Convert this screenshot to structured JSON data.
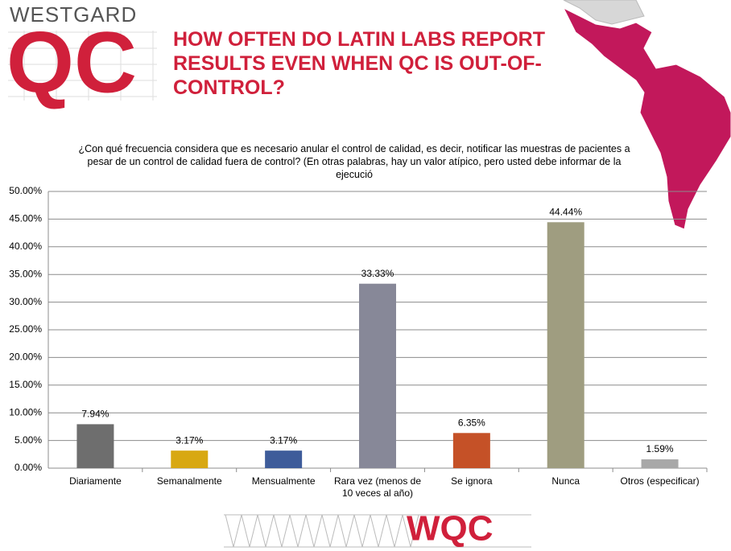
{
  "logo": {
    "brand": "WESTGARD",
    "mark": "QC"
  },
  "footer_logo": "WQC",
  "chart_data": {
    "type": "bar",
    "title": "HOW OFTEN DO LATIN LABS REPORT RESULTS EVEN WHEN QC IS OUT-OF-CONTROL?",
    "subtitle": "¿Con qué frecuencia considera que es necesario anular el control de calidad, es decir, notificar las muestras de pacientes a pesar de un control de calidad fuera de control? (En otras palabras, hay un valor atípico, pero usted debe informar de la ejecució",
    "categories": [
      "Diariamente",
      "Semanalmente",
      "Mensualmente",
      "Rara vez (menos de 10 veces al año)",
      "Se ignora",
      "Nunca",
      "Otros (especificar)"
    ],
    "values": [
      7.94,
      3.17,
      3.17,
      33.33,
      6.35,
      44.44,
      1.59
    ],
    "value_labels": [
      "7.94%",
      "3.17%",
      "3.17%",
      "33.33%",
      "6.35%",
      "44.44%",
      "1.59%"
    ],
    "colors": [
      "#6e6e6e",
      "#d8a812",
      "#3e5c9a",
      "#878898",
      "#c55127",
      "#9f9d80",
      "#a8a8a8"
    ],
    "ylim": [
      0,
      50
    ],
    "yticks": [
      {
        "value": 0,
        "label": "0.00%"
      },
      {
        "value": 5,
        "label": "5.00%"
      },
      {
        "value": 10,
        "label": "10.00%"
      },
      {
        "value": 15,
        "label": "15.00%"
      },
      {
        "value": 20,
        "label": "20.00%"
      },
      {
        "value": 25,
        "label": "25.00%"
      },
      {
        "value": 30,
        "label": "30.00%"
      },
      {
        "value": 35,
        "label": "35.00%"
      },
      {
        "value": 40,
        "label": "40.00%"
      },
      {
        "value": 45,
        "label": "45.00%"
      },
      {
        "value": 50,
        "label": "50.00%"
      }
    ],
    "grid": true
  }
}
